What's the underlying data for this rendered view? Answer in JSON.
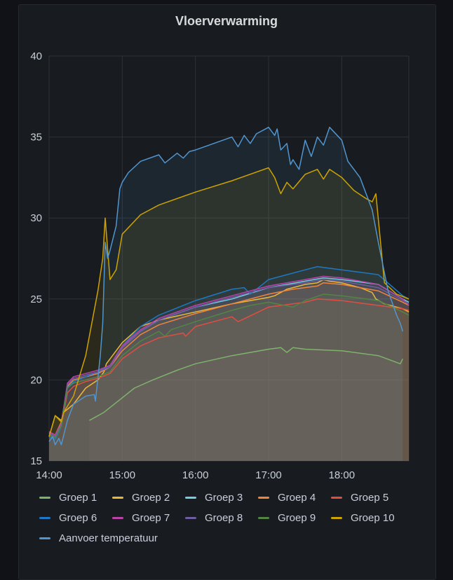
{
  "panel": {
    "title": "Vloerverwarming"
  },
  "chart_data": {
    "type": "area",
    "title": "Vloerverwarming",
    "xlabel": "",
    "ylabel": "",
    "ylim": [
      15,
      40
    ],
    "xlim": [
      "14:00",
      "18:55"
    ],
    "grid": true,
    "legend_position": "bottom",
    "yticks": [
      "40",
      "35",
      "30",
      "25",
      "20",
      "15"
    ],
    "xticks": [
      "14:00",
      "15:00",
      "16:00",
      "17:00",
      "18:00"
    ],
    "series": [
      {
        "name": "Groep 1",
        "color": "#7eb26d",
        "x": [
          "14:33",
          "14:45",
          "15:10",
          "15:25",
          "15:45",
          "16:00",
          "16:30",
          "17:00",
          "17:10",
          "17:15",
          "17:20",
          "17:30",
          "18:00",
          "18:30",
          "18:48",
          "18:50"
        ],
        "y": [
          17.5,
          18.0,
          19.5,
          20.0,
          20.6,
          21.0,
          21.5,
          21.9,
          22.0,
          21.7,
          22.0,
          21.9,
          21.8,
          21.5,
          21.0,
          21.3
        ]
      },
      {
        "name": "Groep 2",
        "color": "#eab839",
        "x": [
          "14:00",
          "14:05",
          "14:10",
          "14:12",
          "14:20",
          "14:30",
          "14:40",
          "14:45",
          "14:47",
          "14:52",
          "15:00",
          "15:15",
          "15:30",
          "16:00",
          "16:30",
          "17:00",
          "17:05",
          "17:10",
          "17:15",
          "17:30",
          "17:40",
          "17:45",
          "17:50",
          "18:00",
          "18:15",
          "18:25",
          "18:28",
          "18:35",
          "18:50",
          "18:55"
        ],
        "y": [
          16.5,
          17.8,
          17.5,
          18.0,
          18.5,
          19.5,
          20.0,
          20.5,
          21.0,
          21.5,
          22.3,
          23.3,
          23.7,
          24.2,
          24.7,
          25.1,
          25.2,
          25.4,
          25.6,
          25.9,
          26.0,
          26.2,
          26.1,
          26.0,
          25.7,
          25.4,
          25.0,
          24.7,
          24.4,
          24.2
        ]
      },
      {
        "name": "Groep 3",
        "color": "#6ed0e0",
        "x": [
          "14:00",
          "14:05",
          "14:10",
          "14:15",
          "14:20",
          "14:30",
          "14:40",
          "14:50",
          "15:00",
          "15:15",
          "15:30",
          "16:00",
          "16:30",
          "17:00",
          "17:30",
          "17:45",
          "18:00",
          "18:30",
          "18:50",
          "18:55"
        ],
        "y": [
          16.7,
          16.5,
          17.3,
          19.5,
          19.9,
          20.2,
          20.4,
          20.8,
          22.0,
          23.0,
          23.7,
          24.5,
          25.0,
          25.7,
          26.1,
          26.3,
          26.2,
          25.9,
          25.0,
          24.8
        ]
      },
      {
        "name": "Groep 4",
        "color": "#ef843c",
        "x": [
          "14:00",
          "14:05",
          "14:10",
          "14:15",
          "14:20",
          "14:30",
          "14:40",
          "14:50",
          "15:00",
          "15:15",
          "15:30",
          "16:00",
          "16:30",
          "17:00",
          "17:20",
          "17:40",
          "17:45",
          "18:00",
          "18:30",
          "18:50",
          "18:55"
        ],
        "y": [
          16.8,
          16.6,
          17.4,
          19.6,
          20.0,
          20.2,
          20.4,
          20.8,
          21.8,
          22.8,
          23.4,
          24.1,
          24.7,
          25.3,
          25.6,
          25.8,
          26.0,
          25.9,
          25.5,
          24.8,
          24.6
        ]
      },
      {
        "name": "Groep 5",
        "color": "#e24d42",
        "x": [
          "14:00",
          "14:05",
          "14:10",
          "14:15",
          "14:20",
          "14:30",
          "14:40",
          "14:50",
          "15:00",
          "15:15",
          "15:30",
          "15:50",
          "15:52",
          "16:00",
          "16:30",
          "16:35",
          "17:00",
          "17:30",
          "17:40",
          "18:00",
          "18:30",
          "18:50",
          "18:55"
        ],
        "y": [
          16.6,
          16.4,
          17.1,
          19.2,
          19.6,
          19.9,
          20.1,
          20.4,
          21.3,
          22.1,
          22.6,
          22.9,
          22.7,
          23.3,
          23.9,
          23.6,
          24.5,
          24.8,
          25.0,
          24.9,
          24.6,
          24.4,
          24.3
        ]
      },
      {
        "name": "Groep 6",
        "color": "#1f78c1",
        "x": [
          "14:00",
          "14:05",
          "14:10",
          "14:15",
          "14:20",
          "14:30",
          "14:40",
          "14:50",
          "15:00",
          "15:15",
          "15:30",
          "16:00",
          "16:30",
          "16:40",
          "16:45",
          "17:00",
          "17:15",
          "17:30",
          "17:40",
          "18:00",
          "18:30",
          "18:50",
          "18:55"
        ],
        "y": [
          16.5,
          16.3,
          17.1,
          19.5,
          19.9,
          20.2,
          20.5,
          20.9,
          22.1,
          23.3,
          24.0,
          24.9,
          25.6,
          25.7,
          25.3,
          26.2,
          26.5,
          26.8,
          27.0,
          26.8,
          26.5,
          25.2,
          25.0
        ]
      },
      {
        "name": "Groep 7",
        "color": "#ba43a9",
        "x": [
          "14:00",
          "14:05",
          "14:10",
          "14:15",
          "14:20",
          "14:30",
          "14:40",
          "14:50",
          "15:00",
          "15:15",
          "15:30",
          "16:00",
          "16:30",
          "17:00",
          "17:30",
          "17:45",
          "18:00",
          "18:30",
          "18:50",
          "18:55"
        ],
        "y": [
          16.8,
          16.6,
          17.3,
          19.8,
          20.2,
          20.4,
          20.6,
          20.9,
          22.1,
          23.1,
          23.8,
          24.6,
          25.2,
          25.8,
          26.2,
          26.4,
          26.3,
          25.9,
          25.0,
          24.6
        ]
      },
      {
        "name": "Groep 8",
        "color": "#705da0",
        "x": [
          "14:00",
          "14:05",
          "14:10",
          "14:15",
          "14:20",
          "14:30",
          "14:40",
          "14:50",
          "15:00",
          "15:15",
          "15:30",
          "16:00",
          "16:30",
          "17:00",
          "17:30",
          "17:45",
          "18:00",
          "18:30",
          "18:50",
          "18:55"
        ],
        "y": [
          16.7,
          16.5,
          17.2,
          19.7,
          20.1,
          20.3,
          20.5,
          20.8,
          22.0,
          23.0,
          23.7,
          24.5,
          25.1,
          25.7,
          26.0,
          26.2,
          26.1,
          25.7,
          24.9,
          24.7
        ]
      },
      {
        "name": "Groep 9",
        "color": "#508642",
        "x": [
          "14:00",
          "14:05",
          "14:10",
          "14:15",
          "14:20",
          "14:30",
          "14:40",
          "14:50",
          "15:00",
          "15:15",
          "15:30",
          "15:35",
          "15:40",
          "16:00",
          "16:30",
          "16:45",
          "17:00",
          "17:20",
          "17:30",
          "17:45",
          "18:00",
          "18:30",
          "18:50",
          "18:55"
        ],
        "y": [
          16.6,
          16.4,
          17.2,
          19.5,
          19.8,
          20.0,
          20.2,
          20.5,
          21.5,
          22.4,
          23.0,
          22.7,
          23.1,
          23.6,
          24.3,
          24.6,
          24.8,
          24.5,
          24.9,
          25.3,
          25.2,
          24.9,
          24.2,
          24.0
        ]
      },
      {
        "name": "Groep 10",
        "color": "#cca300",
        "x": [
          "14:00",
          "14:05",
          "14:10",
          "14:12",
          "14:20",
          "14:30",
          "14:40",
          "14:44",
          "14:46",
          "14:50",
          "14:55",
          "15:00",
          "15:15",
          "15:30",
          "16:00",
          "16:30",
          "17:00",
          "17:05",
          "17:10",
          "17:15",
          "17:20",
          "17:30",
          "17:40",
          "17:45",
          "17:50",
          "18:00",
          "18:10",
          "18:20",
          "18:25",
          "18:28",
          "18:35",
          "18:45",
          "18:55"
        ],
        "y": [
          16.5,
          17.8,
          17.4,
          18.0,
          19.0,
          21.5,
          25.5,
          27.5,
          30.0,
          26.2,
          26.8,
          29.0,
          30.2,
          30.8,
          31.6,
          32.3,
          33.1,
          32.5,
          31.5,
          32.2,
          31.8,
          32.7,
          33.0,
          32.4,
          33.0,
          32.5,
          31.7,
          31.2,
          31.0,
          31.5,
          26.0,
          25.3,
          25.0
        ]
      },
      {
        "name": "Aanvoer temperatuur",
        "color": "#5195ce",
        "x": [
          "14:00",
          "14:03",
          "14:05",
          "14:08",
          "14:10",
          "14:15",
          "14:20",
          "14:30",
          "14:37",
          "14:38",
          "14:42",
          "14:44",
          "14:46",
          "14:48",
          "14:50",
          "14:55",
          "14:58",
          "15:00",
          "15:05",
          "15:15",
          "15:30",
          "15:35",
          "15:45",
          "15:50",
          "15:55",
          "16:00",
          "16:30",
          "16:35",
          "16:40",
          "16:45",
          "16:50",
          "17:00",
          "17:05",
          "17:07",
          "17:10",
          "17:15",
          "17:18",
          "17:20",
          "17:25",
          "17:30",
          "17:35",
          "17:40",
          "17:45",
          "17:50",
          "18:00",
          "18:05",
          "18:15",
          "18:25",
          "18:30",
          "18:38",
          "18:45",
          "18:48",
          "18:50"
        ],
        "y": [
          16.2,
          16.5,
          16.0,
          16.4,
          16.0,
          17.5,
          18.5,
          19.0,
          19.1,
          18.7,
          21.5,
          23.5,
          28.5,
          27.5,
          28.0,
          29.5,
          31.8,
          32.2,
          32.8,
          33.5,
          33.9,
          33.4,
          34.0,
          33.7,
          34.1,
          34.2,
          35.0,
          34.4,
          35.1,
          34.6,
          35.2,
          35.6,
          35.1,
          35.5,
          34.2,
          34.6,
          33.3,
          33.6,
          33.0,
          34.8,
          33.8,
          35.0,
          34.5,
          35.6,
          34.8,
          33.5,
          32.5,
          30.5,
          28.5,
          25.5,
          24.0,
          23.5,
          23.0
        ]
      }
    ]
  }
}
